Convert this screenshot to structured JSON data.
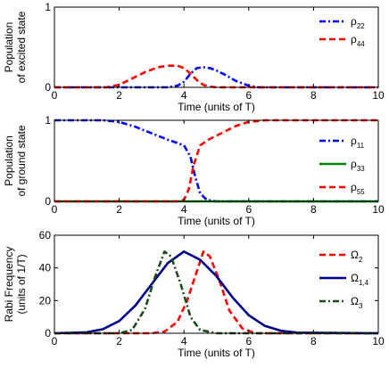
{
  "chart_data": [
    {
      "type": "line",
      "title": "",
      "xlabel": "Time (units of T)",
      "ylabel_lines": [
        "Population",
        "of excited state"
      ],
      "xlim": [
        0,
        10
      ],
      "ylim": [
        0,
        1
      ],
      "xticks": [
        0,
        2,
        4,
        6,
        8,
        10
      ],
      "yticks": [
        0,
        1
      ],
      "grid": false,
      "legend_position": "top-right",
      "series": [
        {
          "name": "ρ22",
          "name_base": "ρ",
          "name_sub": "22",
          "color": "#0000ff",
          "dash": "dash-dot",
          "x": [
            0,
            3.0,
            3.5,
            3.8,
            4.0,
            4.2,
            4.4,
            4.6,
            4.8,
            5.0,
            5.3,
            5.6,
            6.0,
            6.3,
            7.0,
            10
          ],
          "y": [
            0,
            0.0,
            0.0,
            0.02,
            0.07,
            0.17,
            0.24,
            0.25,
            0.24,
            0.21,
            0.15,
            0.08,
            0.02,
            0.0,
            0,
            0
          ]
        },
        {
          "name": "ρ44",
          "name_base": "ρ",
          "name_sub": "44",
          "color": "#ff0000",
          "dash": "dashed",
          "x": [
            0,
            1.6,
            2.0,
            2.4,
            2.8,
            3.2,
            3.5,
            3.8,
            4.0,
            4.2,
            4.4,
            4.6,
            4.8,
            5.0,
            10
          ],
          "y": [
            0,
            0.0,
            0.03,
            0.11,
            0.19,
            0.25,
            0.27,
            0.27,
            0.24,
            0.17,
            0.09,
            0.03,
            0.01,
            0,
            0
          ]
        }
      ]
    },
    {
      "type": "line",
      "title": "",
      "xlabel": "Time (units of T)",
      "ylabel_lines": [
        "Population",
        "of ground state"
      ],
      "xlim": [
        0,
        10
      ],
      "ylim": [
        0,
        1
      ],
      "xticks": [
        0,
        2,
        4,
        6,
        8,
        10
      ],
      "yticks": [
        0,
        1
      ],
      "grid": false,
      "legend_position": "bottom-right",
      "series": [
        {
          "name": "ρ11",
          "name_base": "ρ",
          "name_sub": "11",
          "color": "#0000ff",
          "dash": "dash-dot",
          "x": [
            0,
            1.5,
            2.0,
            2.5,
            3.0,
            3.5,
            3.8,
            4.0,
            4.2,
            4.35,
            4.5,
            4.7,
            5.0,
            10
          ],
          "y": [
            1,
            1.0,
            0.98,
            0.92,
            0.84,
            0.76,
            0.72,
            0.69,
            0.55,
            0.3,
            0.1,
            0.02,
            0.0,
            0
          ]
        },
        {
          "name": "ρ33",
          "name_base": "ρ",
          "name_sub": "33",
          "color": "#008000",
          "dash": "solid",
          "x": [
            0,
            10
          ],
          "y": [
            0,
            0
          ]
        },
        {
          "name": "ρ55",
          "name_base": "ρ",
          "name_sub": "55",
          "color": "#ff0000",
          "dash": "dashed",
          "x": [
            0,
            3.8,
            4.0,
            4.15,
            4.3,
            4.5,
            4.8,
            5.2,
            5.6,
            6.0,
            6.5,
            7.0,
            10
          ],
          "y": [
            0,
            0.0,
            0.02,
            0.15,
            0.45,
            0.69,
            0.77,
            0.85,
            0.93,
            0.98,
            1.0,
            1.0,
            1
          ]
        }
      ]
    },
    {
      "type": "line",
      "title": "",
      "xlabel": "Time (units of T)",
      "ylabel_lines": [
        "Rabi Frequency",
        "(units of 1/T)"
      ],
      "xlim": [
        0,
        10
      ],
      "ylim": [
        0,
        60
      ],
      "xticks": [
        0,
        2,
        4,
        6,
        8,
        10
      ],
      "yticks": [
        0,
        20,
        40,
        60
      ],
      "grid": false,
      "legend_position": "top-right",
      "series": [
        {
          "name": "Ω2",
          "name_base": "Ω",
          "name_sub": "2",
          "color": "#ff0000",
          "dash": "dashed",
          "x": [
            0,
            3.0,
            3.4,
            3.8,
            4.1,
            4.4,
            4.6,
            4.8,
            5.1,
            5.4,
            5.8,
            6.2,
            10
          ],
          "y": [
            0,
            0,
            1,
            7,
            20,
            38,
            50,
            47,
            32,
            14,
            3,
            0,
            0
          ]
        },
        {
          "name": "Ω1,4",
          "name_base": "Ω",
          "name_sub": "1,4",
          "color": "#00008b",
          "dash": "solid",
          "x": [
            0,
            1.0,
            1.5,
            2.0,
            2.5,
            3.0,
            3.5,
            4.0,
            4.5,
            5.0,
            5.5,
            6.0,
            6.5,
            7.0,
            7.5,
            10
          ],
          "y": [
            0,
            0.6,
            2.5,
            7.5,
            17,
            30,
            43,
            50,
            45,
            35,
            22,
            11,
            4.5,
            1.5,
            0.4,
            0
          ]
        },
        {
          "name": "Ω3",
          "name_base": "Ω",
          "name_sub": "3",
          "color": "#1a4d1a",
          "dash": "dash-dot",
          "x": [
            0,
            2.0,
            2.4,
            2.8,
            3.1,
            3.4,
            3.6,
            3.9,
            4.2,
            4.5,
            5.0,
            10
          ],
          "y": [
            0,
            0,
            2,
            15,
            34,
            50,
            47,
            30,
            10,
            2,
            0,
            0
          ]
        }
      ]
    }
  ]
}
